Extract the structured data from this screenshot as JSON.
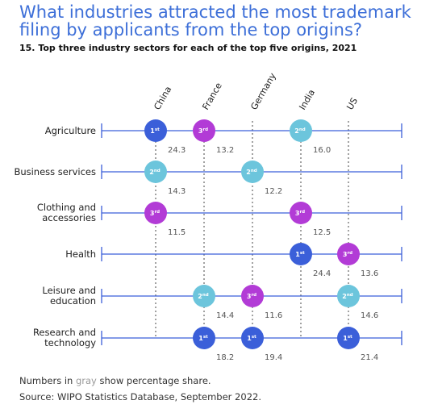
{
  "title": "What industries attracted the most trademark filing by applicants from the top origins?",
  "subtitle": "15. Top three industry sectors for each of the top five origins, 2021",
  "note": {
    "prefix": "Numbers in ",
    "highlight": "gray",
    "suffix": " show percentage share."
  },
  "source": "Source: WIPO Statistics Database, September 2022.",
  "colors": {
    "first": "#3b5fd9",
    "second": "#6cc5dc",
    "third": "#b23bd6",
    "line": "#3b5fd9",
    "share_text": "#555555"
  },
  "chart_data": {
    "type": "dot-matrix",
    "origins": [
      "China",
      "France",
      "Germany",
      "India",
      "US"
    ],
    "sectors": [
      {
        "name": [
          "Agriculture"
        ]
      },
      {
        "name": [
          "Business services"
        ]
      },
      {
        "name": [
          "Clothing and",
          "accessories"
        ]
      },
      {
        "name": [
          "Health"
        ]
      },
      {
        "name": [
          "Leisure and",
          "education"
        ]
      },
      {
        "name": [
          "Research and",
          "technology"
        ]
      }
    ],
    "entries": [
      {
        "sector": 0,
        "origin": 0,
        "rank": 1,
        "rank_sup": "st",
        "share": "24.3"
      },
      {
        "sector": 0,
        "origin": 1,
        "rank": 3,
        "rank_sup": "rd",
        "share": "13.2"
      },
      {
        "sector": 0,
        "origin": 3,
        "rank": 2,
        "rank_sup": "nd",
        "share": "16.0"
      },
      {
        "sector": 1,
        "origin": 0,
        "rank": 2,
        "rank_sup": "nd",
        "share": "14.3"
      },
      {
        "sector": 1,
        "origin": 2,
        "rank": 2,
        "rank_sup": "nd",
        "share": "12.2"
      },
      {
        "sector": 2,
        "origin": 0,
        "rank": 3,
        "rank_sup": "rd",
        "share": "11.5"
      },
      {
        "sector": 2,
        "origin": 3,
        "rank": 3,
        "rank_sup": "rd",
        "share": "12.5"
      },
      {
        "sector": 3,
        "origin": 3,
        "rank": 1,
        "rank_sup": "st",
        "share": "24.4"
      },
      {
        "sector": 3,
        "origin": 4,
        "rank": 3,
        "rank_sup": "rd",
        "share": "13.6"
      },
      {
        "sector": 4,
        "origin": 1,
        "rank": 2,
        "rank_sup": "nd",
        "share": "14.4"
      },
      {
        "sector": 4,
        "origin": 2,
        "rank": 3,
        "rank_sup": "rd",
        "share": "11.6"
      },
      {
        "sector": 4,
        "origin": 4,
        "rank": 2,
        "rank_sup": "nd",
        "share": "14.6"
      },
      {
        "sector": 5,
        "origin": 1,
        "rank": 1,
        "rank_sup": "st",
        "share": "18.2"
      },
      {
        "sector": 5,
        "origin": 2,
        "rank": 1,
        "rank_sup": "st",
        "share": "19.4"
      },
      {
        "sector": 5,
        "origin": 4,
        "rank": 1,
        "rank_sup": "st",
        "share": "21.4"
      }
    ]
  }
}
